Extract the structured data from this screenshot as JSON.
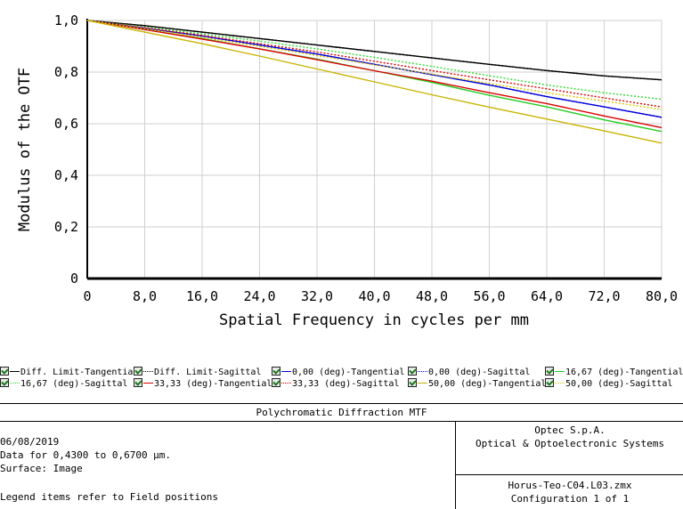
{
  "chart_data": {
    "type": "line",
    "xlabel": "Spatial Frequency in cycles per mm",
    "ylabel": "Modulus of the OTF",
    "xlim": [
      0,
      80
    ],
    "ylim": [
      0,
      1
    ],
    "x_ticks": [
      "0",
      "8,0",
      "16,0",
      "24,0",
      "32,0",
      "40,0",
      "48,0",
      "56,0",
      "64,0",
      "72,0",
      "80,0"
    ],
    "y_ticks": [
      "0",
      "0,2",
      "0,4",
      "0,6",
      "0,8",
      "1,0"
    ],
    "x_tick_values": [
      0,
      8,
      16,
      24,
      32,
      40,
      48,
      56,
      64,
      72,
      80
    ],
    "y_tick_values": [
      0,
      0.2,
      0.4,
      0.6,
      0.8,
      1.0
    ],
    "x": [
      0,
      8,
      16,
      24,
      32,
      40,
      48,
      56,
      64,
      72,
      80
    ],
    "series": [
      {
        "name": "Diff. Limit-Tangential",
        "color": "#000000",
        "style": "solid",
        "values": [
          1.0,
          0.98,
          0.955,
          0.93,
          0.905,
          0.88,
          0.855,
          0.83,
          0.806,
          0.785,
          0.77
        ]
      },
      {
        "name": "Diff. Limit-Sagittal",
        "color": "#000000",
        "style": "dotted",
        "values": [
          1.0,
          0.98,
          0.955,
          0.93,
          0.905,
          0.88,
          0.855,
          0.83,
          0.806,
          0.785,
          0.77
        ]
      },
      {
        "name": "0,00 (deg)-Tangential",
        "color": "#0000dd",
        "style": "solid",
        "values": [
          1.0,
          0.97,
          0.94,
          0.905,
          0.87,
          0.83,
          0.79,
          0.75,
          0.705,
          0.665,
          0.625
        ]
      },
      {
        "name": "0,00 (deg)-Sagittal",
        "color": "#0000dd",
        "style": "dotted",
        "values": [
          1.0,
          0.97,
          0.94,
          0.905,
          0.87,
          0.83,
          0.79,
          0.75,
          0.705,
          0.665,
          0.625
        ]
      },
      {
        "name": "16,67 (deg)-Tangential",
        "color": "#22cc22",
        "style": "solid",
        "values": [
          1.0,
          0.965,
          0.93,
          0.89,
          0.85,
          0.805,
          0.76,
          0.71,
          0.665,
          0.615,
          0.57
        ]
      },
      {
        "name": "16,67 (deg)-Sagittal",
        "color": "#33dd33",
        "style": "dotted",
        "values": [
          1.0,
          0.975,
          0.948,
          0.92,
          0.89,
          0.857,
          0.822,
          0.786,
          0.75,
          0.72,
          0.695
        ]
      },
      {
        "name": "33,33 (deg)-Tangential",
        "color": "#dd0000",
        "style": "solid",
        "values": [
          1.0,
          0.965,
          0.928,
          0.89,
          0.848,
          0.805,
          0.765,
          0.72,
          0.678,
          0.63,
          0.585
        ]
      },
      {
        "name": "33,33 (deg)-Sagittal",
        "color": "#dd0000",
        "style": "dotted",
        "values": [
          1.0,
          0.972,
          0.942,
          0.91,
          0.878,
          0.842,
          0.806,
          0.77,
          0.735,
          0.7,
          0.665
        ]
      },
      {
        "name": "50,00 (deg)-Tangential",
        "color": "#c8b400",
        "style": "solid",
        "values": [
          1.0,
          0.955,
          0.91,
          0.862,
          0.812,
          0.762,
          0.712,
          0.664,
          0.618,
          0.572,
          0.525
        ]
      },
      {
        "name": "50,00 (deg)-Sagittal",
        "color": "#d8c800",
        "style": "dotted",
        "values": [
          1.0,
          0.968,
          0.934,
          0.9,
          0.864,
          0.828,
          0.792,
          0.756,
          0.72,
          0.688,
          0.655
        ]
      }
    ]
  },
  "legend": {
    "items": [
      {
        "label": "Diff. Limit-Tangential",
        "color": "#000000",
        "style": "solid"
      },
      {
        "label": "Diff. Limit-Sagittal",
        "color": "#000000",
        "style": "dotted"
      },
      {
        "label": "0,00 (deg)-Tangential",
        "color": "#0000dd",
        "style": "solid"
      },
      {
        "label": "0,00 (deg)-Sagittal",
        "color": "#0000dd",
        "style": "dotted"
      },
      {
        "label": "16,67 (deg)-Tangential",
        "color": "#22cc22",
        "style": "solid"
      },
      {
        "label": "16,67 (deg)-Sagittal",
        "color": "#33dd33",
        "style": "dotted"
      },
      {
        "label": "33,33 (deg)-Tangential",
        "color": "#dd0000",
        "style": "solid"
      },
      {
        "label": "33,33 (deg)-Sagittal",
        "color": "#dd0000",
        "style": "dotted"
      },
      {
        "label": "50,00 (deg)-Tangential",
        "color": "#c8b400",
        "style": "solid"
      },
      {
        "label": "50,00 (deg)-Sagittal",
        "color": "#d8c800",
        "style": "dotted"
      }
    ]
  },
  "info": {
    "title": "Polychromatic Diffraction MTF",
    "date": "06/08/2019",
    "data_line": "Data for 0,4300 to 0,6700 µm.",
    "surface": "Surface: Image",
    "legend_note": "Legend items refer to Field positions",
    "company_name": "Optec S.p.A.",
    "company_desc": "Optical & Optoelectronic Systems",
    "file_name": "Horus-Teo-C04.L03.zmx",
    "configuration": "Configuration 1 of 1"
  }
}
